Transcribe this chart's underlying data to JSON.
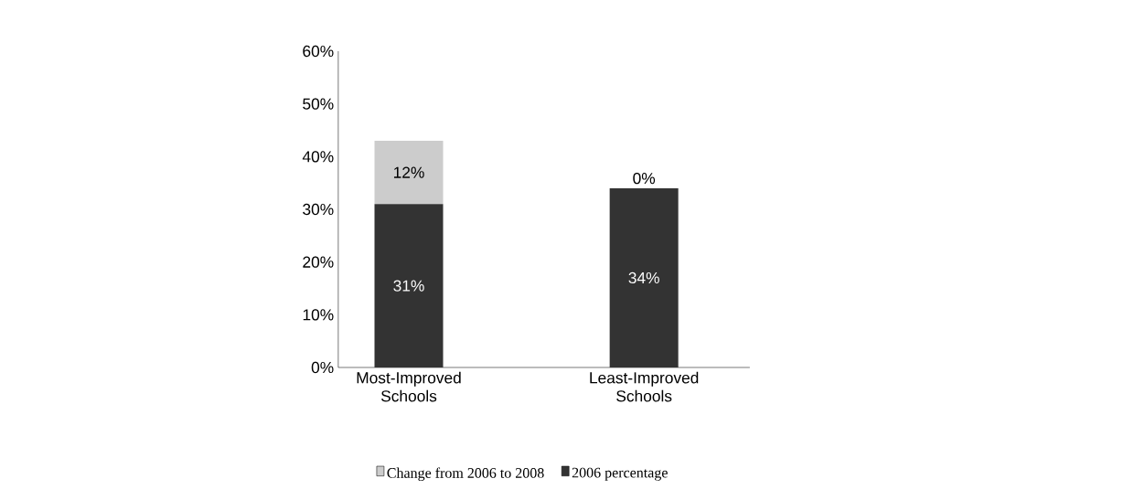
{
  "chart_data": {
    "type": "bar",
    "stacked": true,
    "categories": [
      "Most-Improved Schools",
      "Least-Improved Schools"
    ],
    "series": [
      {
        "name": "2006 percentage",
        "color": "#333333",
        "values": [
          31,
          34
        ],
        "value_labels": [
          "31%",
          "34%"
        ]
      },
      {
        "name": "Change from 2006 to 2008",
        "color": "#cccccc",
        "values": [
          12,
          0
        ],
        "value_labels": [
          "12%",
          "0%"
        ]
      }
    ],
    "ylim": [
      0,
      60
    ],
    "yticks": [
      {
        "value": 0,
        "label": "0%"
      },
      {
        "value": 10,
        "label": "10%"
      },
      {
        "value": 20,
        "label": "20%"
      },
      {
        "value": 30,
        "label": "30%"
      },
      {
        "value": 40,
        "label": "40%"
      },
      {
        "value": 50,
        "label": "50%"
      },
      {
        "value": 60,
        "label": "60%"
      }
    ],
    "grid": false,
    "legend": "bottom"
  }
}
